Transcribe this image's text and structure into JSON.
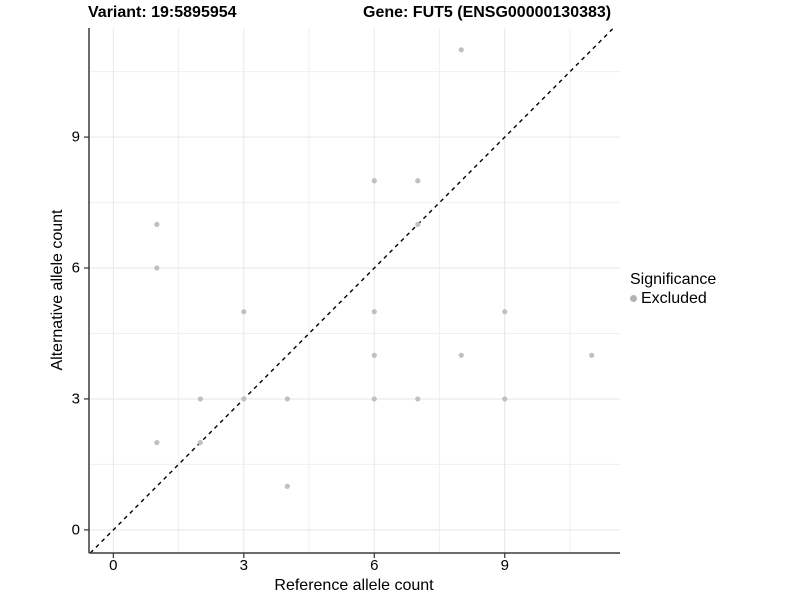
{
  "header": {
    "title_left": "Variant: 19:5895954",
    "title_right": "Gene: FUT5 (ENSG00000130383)"
  },
  "chart_data": {
    "type": "scatter",
    "title_left": "Variant: 19:5895954",
    "title_right": "Gene: FUT5 (ENSG00000130383)",
    "xlabel": "Reference allele count",
    "ylabel": "Alternative allele count",
    "xlim": [
      -0.56,
      11.65
    ],
    "ylim": [
      -0.53,
      11.5
    ],
    "x_ticks": [
      0,
      3,
      6,
      9
    ],
    "y_ticks": [
      0,
      3,
      6,
      9
    ],
    "x_minor_ticks": [
      1.5,
      4.5,
      7.5,
      10.5
    ],
    "y_minor_ticks": [
      1.5,
      4.5,
      7.5,
      10.5
    ],
    "grid": true,
    "reference_line": {
      "kind": "identity y=x",
      "style": "dashed",
      "color": "#000000"
    },
    "series": [
      {
        "name": "Excluded",
        "color": "#c0c0c0",
        "points": [
          [
            1,
            2
          ],
          [
            1,
            6
          ],
          [
            1,
            7
          ],
          [
            2,
            2
          ],
          [
            2,
            3
          ],
          [
            3,
            3
          ],
          [
            3,
            5
          ],
          [
            4,
            1
          ],
          [
            4,
            3
          ],
          [
            6,
            3
          ],
          [
            6,
            4
          ],
          [
            6,
            5
          ],
          [
            6,
            8
          ],
          [
            7,
            3
          ],
          [
            7,
            7
          ],
          [
            7,
            8
          ],
          [
            8,
            4
          ],
          [
            8,
            11
          ],
          [
            9,
            3
          ],
          [
            9,
            5
          ],
          [
            11,
            4
          ]
        ]
      }
    ],
    "legend": {
      "position": "right",
      "title": "Significance",
      "items": [
        {
          "label": "Excluded",
          "color": "#b4b4b4"
        }
      ]
    },
    "colors": {
      "point": "#c0c0c0",
      "grid_major": "#e6e6e6",
      "grid_minor": "#f0f0f0",
      "axis_line": "#3c3c3c",
      "tick_mark": "#333333",
      "text": "#000000",
      "background": "#ffffff"
    }
  }
}
